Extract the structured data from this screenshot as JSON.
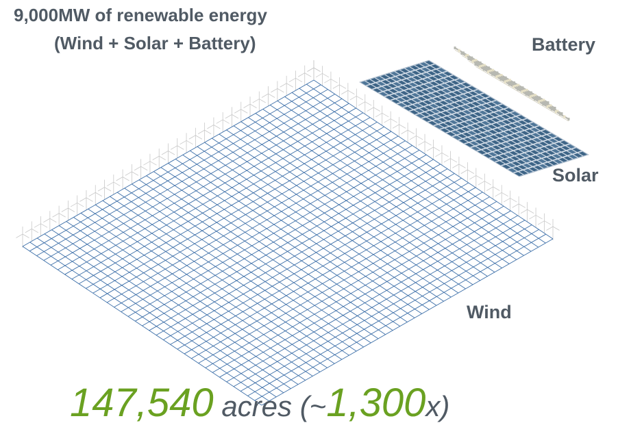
{
  "title": {
    "line1": "9,000MW of renewable energy",
    "line2": "(Wind + Solar + Battery)"
  },
  "labels": {
    "battery": "Battery",
    "solar": "Solar",
    "wind": "Wind"
  },
  "footer": {
    "area_value": "147,540",
    "unit_text": " acres (~",
    "multiplier": "1,300",
    "suffix": "x)"
  },
  "colors": {
    "text_gray": "#505a64",
    "accent_green": "#6aa121",
    "wind_grid": "#3b6ea8",
    "solar_panel": "#3d6486",
    "battery_frame": "#b8b8b0",
    "turbine": "#c8c8c8"
  }
}
